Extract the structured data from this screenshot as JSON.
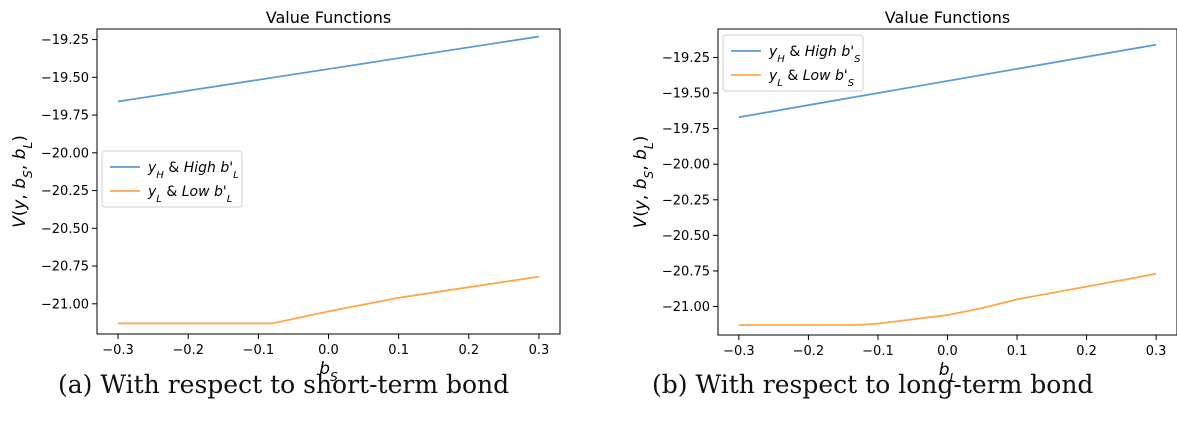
{
  "chart_data": [
    {
      "type": "line",
      "title": "Value Functions",
      "xlabel": "b_S",
      "ylabel": "V(y, b_S, b_L)",
      "xlim": [
        -0.33,
        0.33
      ],
      "ylim": [
        -21.2,
        -19.18
      ],
      "xticks": [
        "−0.3",
        "−0.2",
        "−0.1",
        "0.0",
        "0.1",
        "0.2",
        "0.3"
      ],
      "yticks": [
        "−19.25",
        "−19.50",
        "−19.75",
        "−20.00",
        "−20.25",
        "−20.50",
        "−20.75",
        "−21.00"
      ],
      "legend_position": "center-left",
      "series": [
        {
          "name": "y_H & High b'_L",
          "color": "#5a9bd5",
          "x": [
            -0.3,
            0.3
          ],
          "y": [
            -19.66,
            -19.23
          ]
        },
        {
          "name": "y_L & Low b'_L",
          "color": "#ffa64d",
          "x": [
            -0.3,
            -0.08,
            0.0,
            0.1,
            0.2,
            0.3
          ],
          "y": [
            -21.13,
            -21.13,
            -21.05,
            -20.96,
            -20.89,
            -20.82
          ]
        }
      ],
      "caption": "(a) With respect to short-term bond"
    },
    {
      "type": "line",
      "title": "Value Functions",
      "xlabel": "b_L",
      "ylabel": "V(y, b_S, b_L)",
      "xlim": [
        -0.33,
        0.33
      ],
      "ylim": [
        -21.2,
        -19.05
      ],
      "xticks": [
        "−0.3",
        "−0.2",
        "−0.1",
        "0.0",
        "0.1",
        "0.2",
        "0.3"
      ],
      "yticks": [
        "−19.25",
        "−19.50",
        "−19.75",
        "−20.00",
        "−20.25",
        "−20.50",
        "−20.75",
        "−21.00"
      ],
      "legend_position": "top-left",
      "series": [
        {
          "name": "y_H & High b'_S",
          "color": "#5a9bd5",
          "x": [
            -0.3,
            0.3
          ],
          "y": [
            -19.67,
            -19.16
          ]
        },
        {
          "name": "y_L & Low b'_S",
          "color": "#ffa64d",
          "x": [
            -0.3,
            -0.13,
            -0.1,
            -0.05,
            0.0,
            0.05,
            0.1,
            0.2,
            0.3
          ],
          "y": [
            -21.13,
            -21.13,
            -21.12,
            -21.09,
            -21.06,
            -21.01,
            -20.95,
            -20.86,
            -20.77
          ]
        }
      ],
      "caption": "(b) With respect to long-term bond"
    }
  ]
}
